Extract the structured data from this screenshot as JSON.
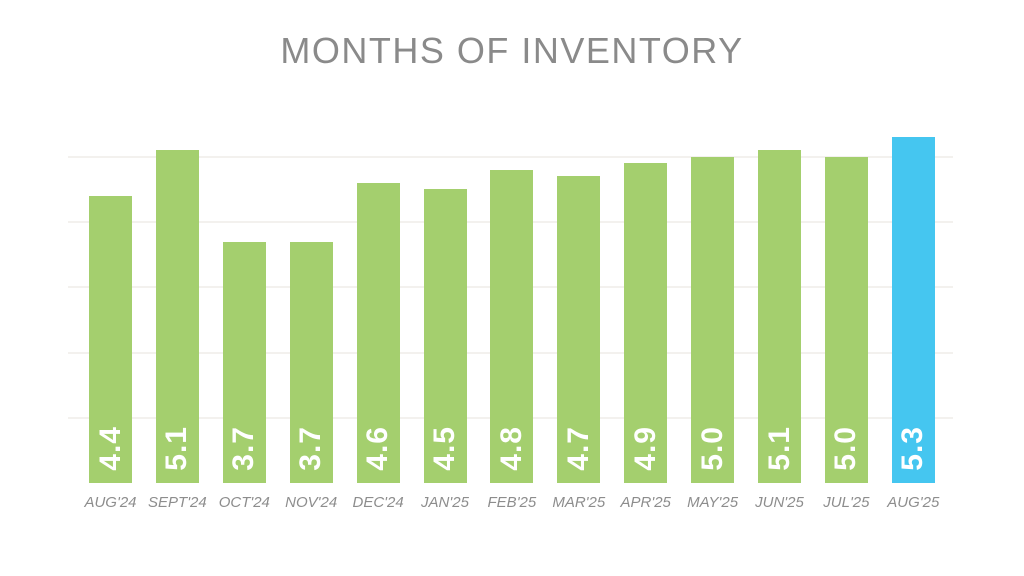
{
  "chart_data": {
    "type": "bar",
    "title": "MONTHS OF INVENTORY",
    "categories": [
      "AUG'24",
      "SEPT'24",
      "OCT'24",
      "NOV'24",
      "DEC'24",
      "JAN'25",
      "FEB'25",
      "MAR'25",
      "APR'25",
      "MAY'25",
      "JUN'25",
      "JUL'25",
      "AUG'25"
    ],
    "values": [
      4.4,
      5.1,
      3.7,
      3.7,
      4.6,
      4.5,
      4.8,
      4.7,
      4.9,
      5.0,
      5.1,
      5.0,
      5.3
    ],
    "value_labels": [
      "4.4",
      "5.1",
      "3.7",
      "3.7",
      "4.6",
      "4.5",
      "4.8",
      "4.7",
      "4.9",
      "5.0",
      "5.1",
      "5.0",
      "5.3"
    ],
    "highlight_index": 12,
    "xlabel": "",
    "ylabel": "",
    "ylim": [
      0,
      5.8
    ],
    "gridline_values": [
      1,
      2,
      3,
      4,
      5
    ],
    "legend_position": "none",
    "colors": {
      "bar": "#a4cf6e",
      "highlight_bar": "#45c6f0",
      "value_label": "#ffffff",
      "axis_label": "#8d8d8d",
      "title": "#8a8a8a",
      "gridline": "#f3f1ee",
      "background": "#ffffff"
    }
  }
}
